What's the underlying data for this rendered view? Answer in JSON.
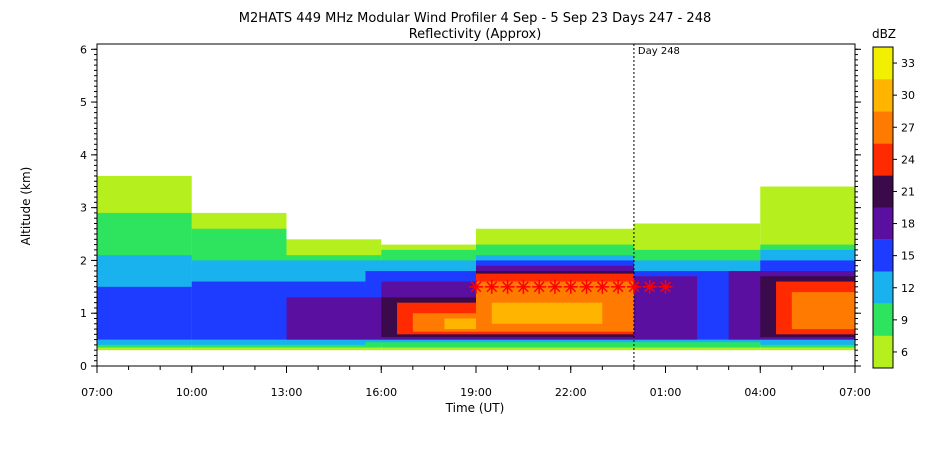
{
  "chart_data": {
    "type": "heatmap",
    "title": "M2HATS 449 MHz Modular Wind Profiler   4 Sep -  5 Sep 23 Days 247 - 248",
    "subtitle": "Reflectivity (Approx)",
    "xlabel": "Time (UT)",
    "ylabel": "Altitude (km)",
    "xticks": [
      "07:00",
      "10:00",
      "13:00",
      "16:00",
      "19:00",
      "22:00",
      "01:00",
      "04:00",
      "07:00"
    ],
    "xlim_hours": [
      0,
      24
    ],
    "yticks": [
      0,
      1,
      2,
      3,
      4,
      5,
      6
    ],
    "ylim": [
      0,
      6.1
    ],
    "colorbar": {
      "label": "dBZ",
      "ticks": [
        6,
        9,
        12,
        15,
        18,
        21,
        24,
        27,
        30,
        33
      ],
      "colors": [
        "#b5f01e",
        "#2ee45f",
        "#1ab2ee",
        "#1e3cff",
        "#5a0fa0",
        "#3a0a4a",
        "#ff2a00",
        "#ff7a00",
        "#ffb400",
        "#f0f000"
      ]
    },
    "annotation": {
      "text": "Day 248",
      "time_hours": 17
    },
    "markers": {
      "symbol": "red asterisk",
      "altitude_km": 1.5,
      "time_hours": [
        12,
        12.5,
        13,
        13.5,
        14,
        14.5,
        15,
        15.5,
        16,
        16.5,
        17,
        17.5,
        18
      ]
    },
    "layers": [
      {
        "dbz": 6,
        "segments": [
          {
            "t": [
              0,
              3
            ],
            "z": [
              0.3,
              3.6
            ]
          },
          {
            "t": [
              3,
              6
            ],
            "z": [
              0.3,
              2.9
            ]
          },
          {
            "t": [
              6,
              9
            ],
            "z": [
              0.3,
              2.4
            ]
          },
          {
            "t": [
              9,
              12
            ],
            "z": [
              0.3,
              2.3
            ]
          },
          {
            "t": [
              12,
              17
            ],
            "z": [
              0.3,
              2.6
            ]
          },
          {
            "t": [
              17,
              21
            ],
            "z": [
              0.3,
              2.7
            ]
          },
          {
            "t": [
              21,
              24
            ],
            "z": [
              0.3,
              3.4
            ]
          }
        ]
      },
      {
        "dbz": 9,
        "segments": [
          {
            "t": [
              0,
              3
            ],
            "z": [
              0.35,
              2.9
            ]
          },
          {
            "t": [
              3,
              6
            ],
            "z": [
              0.35,
              2.6
            ]
          },
          {
            "t": [
              6,
              9
            ],
            "z": [
              0.35,
              2.1
            ]
          },
          {
            "t": [
              9,
              12
            ],
            "z": [
              0.35,
              2.2
            ]
          },
          {
            "t": [
              12,
              17
            ],
            "z": [
              0.35,
              2.3
            ]
          },
          {
            "t": [
              17,
              21
            ],
            "z": [
              0.35,
              2.2
            ]
          },
          {
            "t": [
              21,
              24
            ],
            "z": [
              0.35,
              2.3
            ]
          }
        ]
      },
      {
        "dbz": 12,
        "segments": [
          {
            "t": [
              0,
              3
            ],
            "z": [
              0.4,
              2.1
            ]
          },
          {
            "t": [
              3,
              8.5
            ],
            "z": [
              0.4,
              2.0
            ]
          },
          {
            "t": [
              8.5,
              12
            ],
            "z": [
              0.45,
              2.0
            ]
          },
          {
            "t": [
              12,
              17
            ],
            "z": [
              0.45,
              2.1
            ]
          },
          {
            "t": [
              17,
              21
            ],
            "z": [
              0.45,
              2.0
            ]
          },
          {
            "t": [
              21,
              24
            ],
            "z": [
              0.4,
              2.2
            ]
          }
        ]
      },
      {
        "dbz": 15,
        "segments": [
          {
            "t": [
              0,
              3
            ],
            "z": [
              0.5,
              1.5
            ]
          },
          {
            "t": [
              3,
              8.5
            ],
            "z": [
              0.5,
              1.6
            ]
          },
          {
            "t": [
              8.5,
              12
            ],
            "z": [
              0.5,
              1.8
            ]
          },
          {
            "t": [
              12,
              17
            ],
            "z": [
              0.5,
              2.0
            ]
          },
          {
            "t": [
              17,
              21
            ],
            "z": [
              0.5,
              1.8
            ]
          },
          {
            "t": [
              21,
              24
            ],
            "z": [
              0.5,
              2.0
            ]
          }
        ]
      },
      {
        "dbz": 18,
        "segments": [
          {
            "t": [
              6,
              9
            ],
            "z": [
              0.5,
              1.3
            ]
          },
          {
            "t": [
              9,
              12
            ],
            "z": [
              0.5,
              1.6
            ]
          },
          {
            "t": [
              12,
              17
            ],
            "z": [
              0.5,
              1.9
            ]
          },
          {
            "t": [
              17,
              19
            ],
            "z": [
              0.5,
              1.7
            ]
          },
          {
            "t": [
              20,
              24
            ],
            "z": [
              0.5,
              1.8
            ]
          }
        ]
      },
      {
        "dbz": 21,
        "segments": [
          {
            "t": [
              9,
              12
            ],
            "z": [
              0.55,
              1.3
            ]
          },
          {
            "t": [
              12,
              17
            ],
            "z": [
              0.55,
              1.8
            ]
          },
          {
            "t": [
              21,
              24
            ],
            "z": [
              0.55,
              1.7
            ]
          }
        ]
      },
      {
        "dbz": 24,
        "segments": [
          {
            "t": [
              9.5,
              12
            ],
            "z": [
              0.6,
              1.2
            ]
          },
          {
            "t": [
              12,
              17
            ],
            "z": [
              0.6,
              1.75
            ]
          },
          {
            "t": [
              21.5,
              24
            ],
            "z": [
              0.6,
              1.6
            ]
          }
        ]
      },
      {
        "dbz": 27,
        "segments": [
          {
            "t": [
              10,
              12
            ],
            "z": [
              0.65,
              1.0
            ]
          },
          {
            "t": [
              12,
              17
            ],
            "z": [
              0.65,
              1.6
            ]
          },
          {
            "t": [
              22,
              24
            ],
            "z": [
              0.7,
              1.4
            ]
          }
        ]
      },
      {
        "dbz": 30,
        "segments": [
          {
            "t": [
              11,
              12
            ],
            "z": [
              0.7,
              0.9
            ]
          },
          {
            "t": [
              12.5,
              16
            ],
            "z": [
              0.8,
              1.2
            ]
          }
        ]
      }
    ]
  }
}
